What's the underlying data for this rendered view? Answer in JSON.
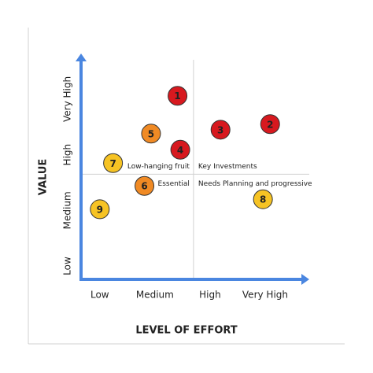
{
  "chart_data": {
    "type": "scatter",
    "xlabel": "LEVEL OF EFFORT",
    "ylabel": "VALUE",
    "xlim": [
      0.66,
      4.8
    ],
    "ylim": [
      0.76,
      4.82
    ],
    "xticks": [
      {
        "value": 1,
        "label": "Low"
      },
      {
        "value": 2,
        "label": "Medium"
      },
      {
        "value": 3,
        "label": "High"
      },
      {
        "value": 4,
        "label": "Very High"
      }
    ],
    "yticks": [
      {
        "value": 1,
        "label": "Low"
      },
      {
        "value": 2,
        "label": "Medium"
      },
      {
        "value": 3,
        "label": "High"
      },
      {
        "value": 4,
        "label": "Very High"
      }
    ],
    "quadrant_x": 2.7,
    "quadrant_y": 2.65,
    "annotations": [
      "Low-hanging fruit",
      "Key Investments",
      "Essential",
      "Needs Planning and progressive"
    ],
    "labels": [
      "1",
      "2",
      "3",
      "4",
      "5",
      "6",
      "7",
      "8",
      "9"
    ],
    "x": [
      2.41,
      4.09,
      3.19,
      2.46,
      1.93,
      1.81,
      1.24,
      3.96,
      1.0
    ],
    "values": [
      4.06,
      3.55,
      3.45,
      3.09,
      3.38,
      2.44,
      2.85,
      2.2,
      2.02
    ],
    "colors": [
      "#d7191f",
      "#d7191f",
      "#d7191f",
      "#d7191f",
      "#f08a24",
      "#f08a24",
      "#f6c324",
      "#f6c324",
      "#f6c324"
    ]
  }
}
